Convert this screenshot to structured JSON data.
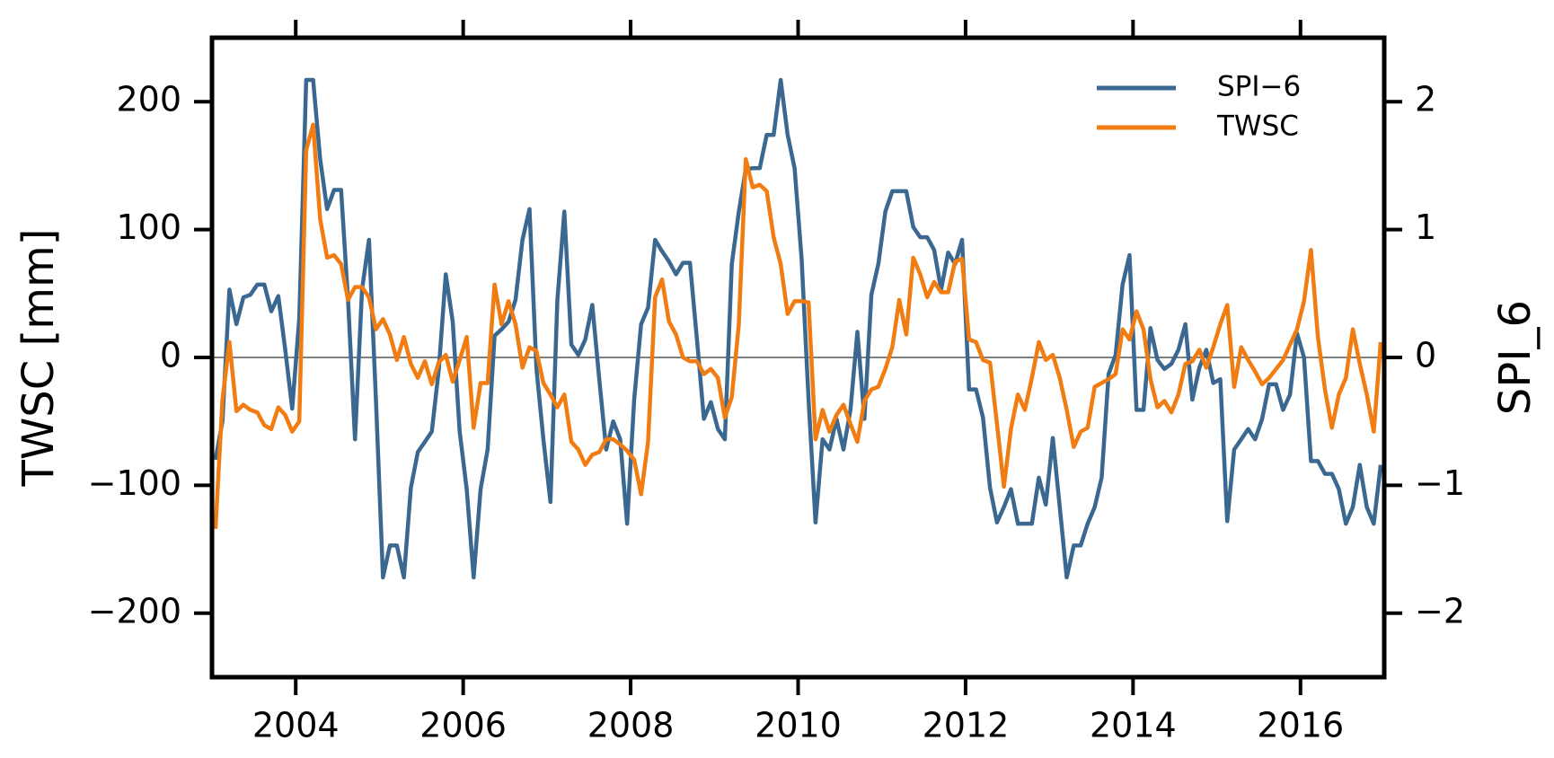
{
  "chart_data": {
    "type": "line",
    "xlabel": null,
    "ylabel": "TWSC [mm]",
    "y2label": "SPI_6",
    "x": [
      2003.042,
      2003.125,
      2003.208,
      2003.292,
      2003.375,
      2003.458,
      2003.542,
      2003.625,
      2003.708,
      2003.792,
      2003.875,
      2003.958,
      2004.042,
      2004.125,
      2004.208,
      2004.292,
      2004.375,
      2004.458,
      2004.542,
      2004.625,
      2004.708,
      2004.792,
      2004.875,
      2004.958,
      2005.042,
      2005.125,
      2005.208,
      2005.292,
      2005.375,
      2005.458,
      2005.542,
      2005.625,
      2005.708,
      2005.792,
      2005.875,
      2005.958,
      2006.042,
      2006.125,
      2006.208,
      2006.292,
      2006.375,
      2006.458,
      2006.542,
      2006.625,
      2006.708,
      2006.792,
      2006.875,
      2006.958,
      2007.042,
      2007.125,
      2007.208,
      2007.292,
      2007.375,
      2007.458,
      2007.542,
      2007.625,
      2007.708,
      2007.792,
      2007.875,
      2007.958,
      2008.042,
      2008.125,
      2008.208,
      2008.292,
      2008.375,
      2008.458,
      2008.542,
      2008.625,
      2008.708,
      2008.792,
      2008.875,
      2008.958,
      2009.042,
      2009.125,
      2009.208,
      2009.292,
      2009.375,
      2009.458,
      2009.542,
      2009.625,
      2009.708,
      2009.792,
      2009.875,
      2009.958,
      2010.042,
      2010.125,
      2010.208,
      2010.292,
      2010.375,
      2010.458,
      2010.542,
      2010.625,
      2010.708,
      2010.792,
      2010.875,
      2010.958,
      2011.042,
      2011.125,
      2011.208,
      2011.292,
      2011.375,
      2011.458,
      2011.542,
      2011.625,
      2011.708,
      2011.792,
      2011.875,
      2011.958,
      2012.042,
      2012.125,
      2012.208,
      2012.292,
      2012.375,
      2012.458,
      2012.542,
      2012.625,
      2012.708,
      2012.792,
      2012.875,
      2012.958,
      2013.042,
      2013.125,
      2013.208,
      2013.292,
      2013.375,
      2013.458,
      2013.542,
      2013.625,
      2013.708,
      2013.792,
      2013.875,
      2013.958,
      2014.042,
      2014.125,
      2014.208,
      2014.292,
      2014.375,
      2014.458,
      2014.542,
      2014.625,
      2014.708,
      2014.792,
      2014.875,
      2014.958,
      2015.042,
      2015.125,
      2015.208,
      2015.292,
      2015.375,
      2015.458,
      2015.542,
      2015.625,
      2015.708,
      2015.792,
      2015.875,
      2015.958,
      2016.042,
      2016.125,
      2016.208,
      2016.292,
      2016.375,
      2016.458,
      2016.542,
      2016.625,
      2016.708,
      2016.792,
      2016.875,
      2016.958
    ],
    "series": [
      {
        "name": "SPI−6",
        "color": "#3b6890",
        "axis": "y2",
        "values": [
          -0.8,
          -0.5,
          0.53,
          0.26,
          0.47,
          0.49,
          0.57,
          0.57,
          0.36,
          0.48,
          0.06,
          -0.4,
          0.3,
          2.17,
          2.17,
          1.55,
          1.16,
          1.31,
          1.31,
          0.45,
          -0.64,
          0.53,
          0.92,
          -0.33,
          -1.72,
          -1.47,
          -1.47,
          -1.72,
          -1.02,
          -0.74,
          -0.66,
          -0.58,
          -0.1,
          0.65,
          0.28,
          -0.58,
          -1.03,
          -1.72,
          -1.03,
          -0.72,
          0.17,
          0.22,
          0.28,
          0.45,
          0.92,
          1.16,
          -0.09,
          -0.64,
          -1.13,
          0.45,
          1.14,
          0.1,
          0.02,
          0.14,
          0.41,
          -0.17,
          -0.72,
          -0.5,
          -0.64,
          -1.3,
          -0.33,
          0.26,
          0.39,
          0.92,
          0.83,
          0.75,
          0.65,
          0.74,
          0.74,
          0.14,
          -0.48,
          -0.35,
          -0.56,
          -0.64,
          0.73,
          1.14,
          1.47,
          1.48,
          1.48,
          1.74,
          1.74,
          2.17,
          1.74,
          1.48,
          0.77,
          -0.33,
          -1.29,
          -0.64,
          -0.72,
          -0.48,
          -0.72,
          -0.41,
          0.2,
          -0.48,
          0.49,
          0.73,
          1.14,
          1.3,
          1.3,
          1.3,
          1.02,
          0.94,
          0.94,
          0.84,
          0.53,
          0.82,
          0.73,
          0.92,
          -0.25,
          -0.25,
          -0.47,
          -1.02,
          -1.29,
          -1.17,
          -1.03,
          -1.3,
          -1.3,
          -1.3,
          -0.94,
          -1.15,
          -0.63,
          -1.17,
          -1.72,
          -1.47,
          -1.47,
          -1.3,
          -1.17,
          -0.94,
          -0.13,
          0.02,
          0.57,
          0.8,
          -0.41,
          -0.41,
          0.23,
          -0.02,
          -0.09,
          -0.05,
          0.06,
          0.26,
          -0.33,
          -0.08,
          0.06,
          -0.2,
          -0.17,
          -1.28,
          -0.72,
          -0.64,
          -0.56,
          -0.64,
          -0.48,
          -0.21,
          -0.21,
          -0.41,
          -0.29,
          0.19,
          0,
          -0.81,
          -0.81,
          -0.91,
          -0.91,
          -1.03,
          -1.3,
          -1.17,
          -0.84,
          -1.17,
          -1.3,
          -0.84
        ]
      },
      {
        "name": "TWSC",
        "color": "#f07c12",
        "axis": "y",
        "values": [
          -134,
          -33,
          12,
          -42,
          -37,
          -41,
          -43,
          -53,
          -56,
          -39,
          -45,
          -58,
          -50,
          162,
          182,
          108,
          78,
          80,
          73,
          45,
          55,
          55,
          47,
          22,
          30,
          18,
          -2,
          16,
          -5,
          -16,
          -3,
          -21,
          -4,
          2,
          -19,
          -2,
          16,
          -55,
          -20,
          -20,
          57,
          26,
          44,
          26,
          -8,
          8,
          5,
          -20,
          -29,
          -39,
          -29,
          -66,
          -72,
          -84,
          -76,
          -74,
          -64,
          -64,
          -68,
          -73,
          -80,
          -107,
          -66,
          47,
          61,
          28,
          18,
          0,
          -3,
          -3,
          -13,
          -9,
          -16,
          -47,
          -31,
          26,
          155,
          133,
          135,
          130,
          94,
          73,
          34,
          44,
          44,
          43,
          -64,
          -41,
          -58,
          -45,
          -37,
          -52,
          -66,
          -34,
          -25,
          -23,
          -9,
          8,
          45,
          18,
          78,
          65,
          47,
          59,
          51,
          51,
          75,
          77,
          14,
          12,
          -2,
          -4,
          -52,
          -101,
          -56,
          -29,
          -41,
          -16,
          12,
          -2,
          2,
          -16,
          -41,
          -70,
          -58,
          -55,
          -23,
          -20,
          -17,
          -13,
          22,
          14,
          36,
          22,
          -17,
          -39,
          -34,
          -43,
          -29,
          -5,
          -3,
          6,
          -8,
          8,
          26,
          41,
          -23,
          8,
          -2,
          -11,
          -21,
          -16,
          -9,
          -2,
          10,
          22,
          44,
          84,
          16,
          -25,
          -55,
          -29,
          -16,
          22,
          -5,
          -29,
          -58,
          12
        ]
      }
    ],
    "xlim": [
      2003,
      2017
    ],
    "xticks": [
      2004,
      2006,
      2008,
      2010,
      2012,
      2014,
      2016
    ],
    "ylim": [
      -250,
      250
    ],
    "yticks": [
      {
        "value": -200,
        "label": "−200"
      },
      {
        "value": -100,
        "label": "−100"
      },
      0,
      100,
      200
    ],
    "y2lim": [
      -2.5,
      2.5
    ],
    "y2ticks": [
      {
        "value": -2,
        "label": "−2"
      },
      {
        "value": -1,
        "label": "−1"
      },
      0,
      1,
      2
    ],
    "hline": 0,
    "legend": "upper right",
    "grid": false
  }
}
